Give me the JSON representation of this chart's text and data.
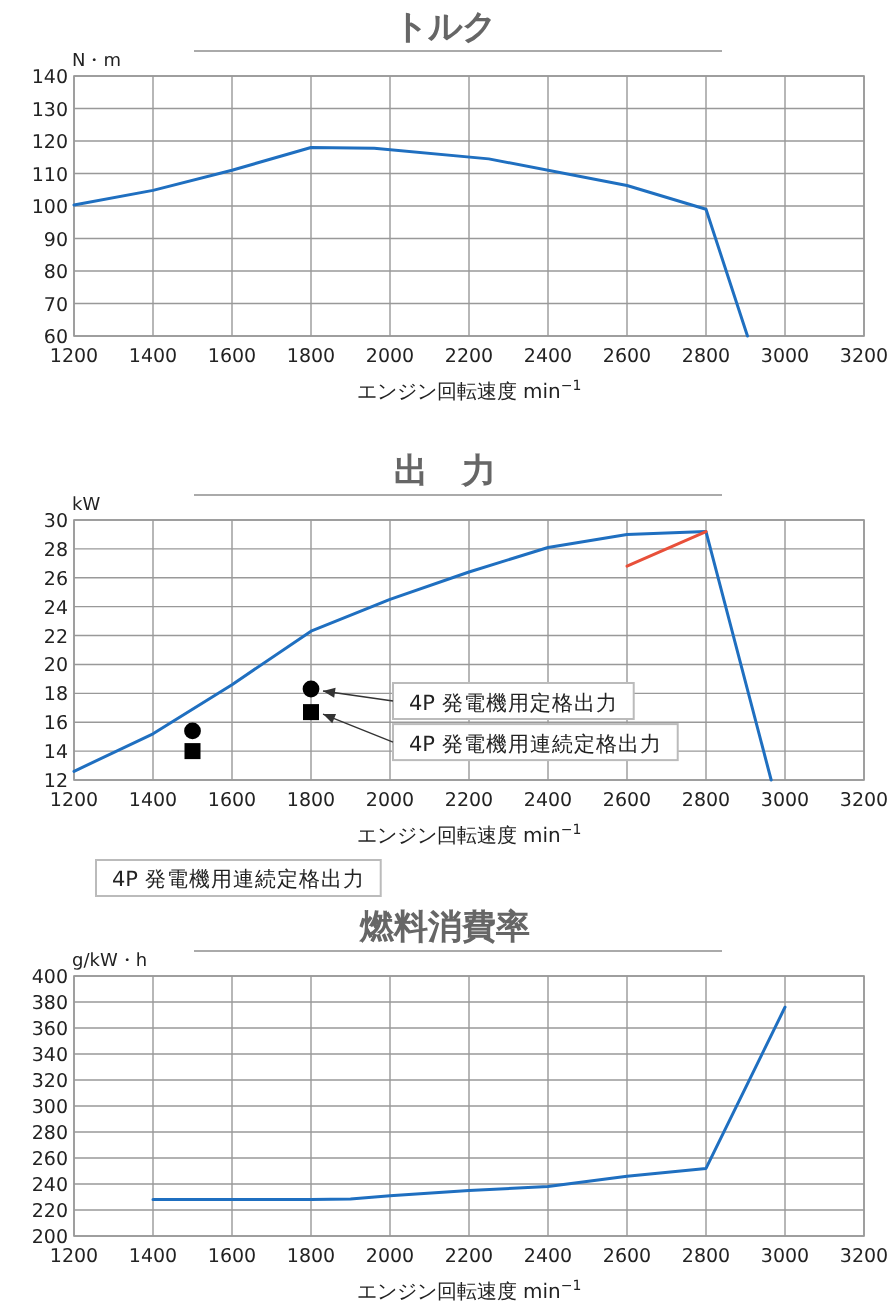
{
  "chart_data": [
    {
      "type": "line",
      "title": "トルク",
      "ylabel": "N・m",
      "xlabel": "エンジン回転速度 min$^{−1}$",
      "xlim": [
        1200,
        3200
      ],
      "xticks": [
        1200,
        1400,
        1600,
        1800,
        2000,
        2200,
        2400,
        2600,
        2800,
        3000,
        3200
      ],
      "ylim": [
        60,
        140
      ],
      "yticks": [
        60,
        70,
        80,
        90,
        100,
        110,
        120,
        130,
        140
      ],
      "grid": true,
      "series": [
        {
          "color": "#1f6fc0",
          "x": [
            1200,
            1400,
            1600,
            1800,
            1960,
            2250,
            2600,
            2800,
            2905
          ],
          "values": [
            100.3,
            104.8,
            111,
            118,
            117.8,
            114.5,
            106.3,
            99,
            60
          ]
        }
      ]
    },
    {
      "type": "line",
      "title": "出　力",
      "ylabel": "kW",
      "xlabel": "エンジン回転速度 min$^{−1}$",
      "xlim": [
        1200,
        3200
      ],
      "xticks": [
        1200,
        1400,
        1600,
        1800,
        2000,
        2200,
        2400,
        2600,
        2800,
        3000,
        3200
      ],
      "ylim": [
        12,
        30
      ],
      "yticks": [
        12,
        14,
        16,
        18,
        20,
        22,
        24,
        26,
        28,
        30
      ],
      "grid": true,
      "series": [
        {
          "color": "#1f6fc0",
          "x": [
            1200,
            1400,
            1600,
            1800,
            2000,
            2200,
            2400,
            2600,
            2800,
            2965
          ],
          "values": [
            12.6,
            15.2,
            18.6,
            22.3,
            24.5,
            26.4,
            28.1,
            29,
            29.2,
            12
          ]
        },
        {
          "color": "#e8503a",
          "x": [
            2600,
            2800
          ],
          "values": [
            26.8,
            29.2
          ]
        },
        {
          "type": "scatter",
          "marker": "circle",
          "color": "#000000",
          "x": [
            1500,
            1800
          ],
          "values": [
            15.4,
            18.3
          ]
        },
        {
          "type": "scatter",
          "marker": "square",
          "color": "#000000",
          "x": [
            1500,
            1800
          ],
          "values": [
            14,
            16.7
          ]
        }
      ],
      "annotations": [
        {
          "text": "4P 発電機用定格出力",
          "x": 1800,
          "y": 18.3
        },
        {
          "text": "4P 発電機用連続定格出力",
          "x": 1800,
          "y": 16.7
        },
        "4P 発電機用連続定格出力"
      ]
    },
    {
      "type": "line",
      "title": "燃料消費率",
      "ylabel": "g/kW・h",
      "xlabel": "エンジン回転速度 min$^{−1}$",
      "xlim": [
        1200,
        3200
      ],
      "xticks": [
        1200,
        1400,
        1600,
        1800,
        2000,
        2200,
        2400,
        2600,
        2800,
        3000,
        3200
      ],
      "ylim": [
        200,
        400
      ],
      "yticks": [
        200,
        220,
        240,
        260,
        280,
        300,
        320,
        340,
        360,
        380,
        400
      ],
      "grid": true,
      "series": [
        {
          "color": "#1f6fc0",
          "x": [
            1400,
            1800,
            1900,
            2000,
            2200,
            2400,
            2600,
            2800,
            3000
          ],
          "values": [
            228,
            228,
            228.5,
            231,
            235,
            238,
            246,
            252,
            376
          ]
        }
      ]
    }
  ]
}
